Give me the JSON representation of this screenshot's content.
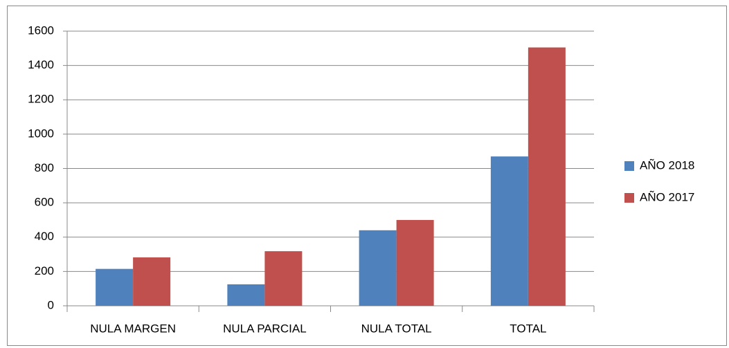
{
  "chart_data": {
    "type": "bar",
    "categories": [
      "NULA MARGEN",
      "NULA PARCIAL",
      "NULA TOTAL",
      "TOTAL"
    ],
    "series": [
      {
        "name": "AÑO 2018",
        "color": "#4f81bd",
        "values": [
          215,
          125,
          440,
          870
        ]
      },
      {
        "name": "AÑO 2017",
        "color": "#c0504d",
        "values": [
          282,
          318,
          500,
          1505
        ]
      }
    ],
    "ylim": [
      0,
      1600
    ],
    "yticks": [
      0,
      200,
      400,
      600,
      800,
      1000,
      1200,
      1400,
      1600
    ],
    "grid": true,
    "legend": "right"
  }
}
